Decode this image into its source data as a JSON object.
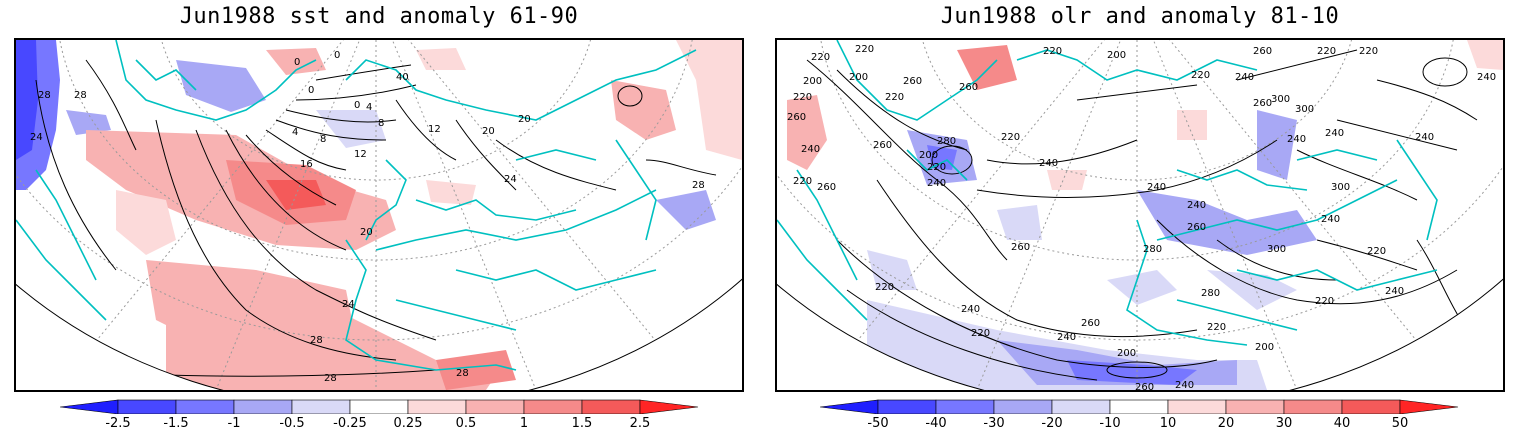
{
  "left_panel": {
    "title": "Jun1988 sst and anomaly 61-90",
    "contour_labels": [
      "28",
      "28",
      "24",
      "0",
      "0",
      "0",
      "40",
      "0",
      "4",
      "4",
      "8",
      "8",
      "12",
      "12",
      "16",
      "20",
      "24",
      "24",
      "28",
      "28",
      "28",
      "20",
      "20",
      "28"
    ],
    "colorbar": {
      "colors": [
        "#1f1fff",
        "#4848ff",
        "#7777ff",
        "#a8a8f5",
        "#d9d9f7",
        "#ffffff",
        "#fcdada",
        "#f8b2b2",
        "#f58a8a",
        "#f45a5a",
        "#ff2525"
      ],
      "labels": [
        "-2.5",
        "-1.5",
        "-1",
        "-0.5",
        "-0.25",
        "0.25",
        "0.5",
        "1",
        "1.5",
        "2.5"
      ]
    }
  },
  "right_panel": {
    "title": "Jun1988 olr and anomaly 81-10",
    "contour_labels": [
      "220",
      "220",
      "200",
      "220",
      "260",
      "200",
      "260",
      "220",
      "240",
      "260",
      "280",
      "200",
      "220",
      "240",
      "200",
      "220",
      "260",
      "220",
      "260",
      "220",
      "240",
      "300",
      "300",
      "240",
      "220",
      "240",
      "260",
      "240",
      "240",
      "220",
      "240",
      "220",
      "300",
      "260",
      "240",
      "260",
      "260",
      "240",
      "220",
      "280",
      "300",
      "240",
      "280",
      "240",
      "220",
      "240",
      "260",
      "220",
      "200",
      "220",
      "200",
      "240",
      "220",
      "260",
      "240"
    ],
    "colorbar": {
      "colors": [
        "#1f1fff",
        "#4848ff",
        "#7777ff",
        "#a8a8f5",
        "#d9d9f7",
        "#ffffff",
        "#fcdada",
        "#f8b2b2",
        "#f58a8a",
        "#f45a5a",
        "#ff2525"
      ],
      "labels": [
        "-50",
        "-40",
        "-30",
        "-20",
        "-10",
        "10",
        "20",
        "30",
        "40",
        "50"
      ]
    }
  }
}
